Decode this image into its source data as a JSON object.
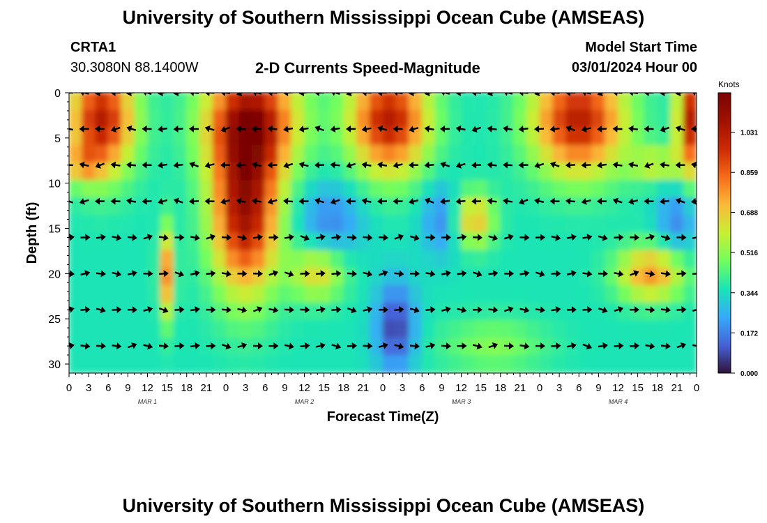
{
  "header": {
    "title_top": "University of Southern Mississippi Ocean Cube (AMSEAS)",
    "title_bottom": "University of Southern Mississippi Ocean Cube (AMSEAS)",
    "station_id": "CRTA1",
    "station_coords": "30.3080N  88.1400W",
    "chart_title": "2-D Currents Speed-Magnitude",
    "model_start_label": "Model Start Time",
    "model_start_value": "03/01/2024 Hour 00"
  },
  "chart_data": {
    "type": "heatmap",
    "title": "2-D Currents Speed-Magnitude",
    "xlabel": "Forecast Time(Z)",
    "ylabel": "Depth (ft)",
    "x_tick_labels": [
      "0",
      "3",
      "6",
      "9",
      "12",
      "15",
      "18",
      "21",
      "0",
      "3",
      "6",
      "9",
      "12",
      "15",
      "18",
      "21",
      "0",
      "3",
      "6",
      "9",
      "12",
      "15",
      "18",
      "21",
      "0",
      "3",
      "6",
      "9",
      "12",
      "15",
      "18",
      "21",
      "0"
    ],
    "x_range_hours": [
      0,
      96
    ],
    "date_labels": [
      {
        "text": "MAR 1",
        "hour": 12
      },
      {
        "text": "MAR 2",
        "hour": 36
      },
      {
        "text": "MAR 3",
        "hour": 60
      },
      {
        "text": "MAR 4",
        "hour": 84
      }
    ],
    "y_ticks": [
      0,
      5,
      10,
      15,
      20,
      25,
      30
    ],
    "y_range": [
      0,
      31
    ],
    "y_inverted": true,
    "colorbar": {
      "label": "Knots",
      "ticks": [
        "1.031",
        "0.859",
        "0.688",
        "0.516",
        "0.344",
        "0.172",
        "0.000"
      ],
      "tick_values": [
        1.031,
        0.859,
        0.688,
        0.516,
        0.344,
        0.172,
        0.0
      ],
      "range": [
        0,
        1.2
      ]
    },
    "vector_depths": [
      0,
      4,
      8,
      12,
      16,
      20,
      24,
      28
    ],
    "vector_step_hours": 2.4,
    "vector_direction_left_until_depth": 16
  }
}
